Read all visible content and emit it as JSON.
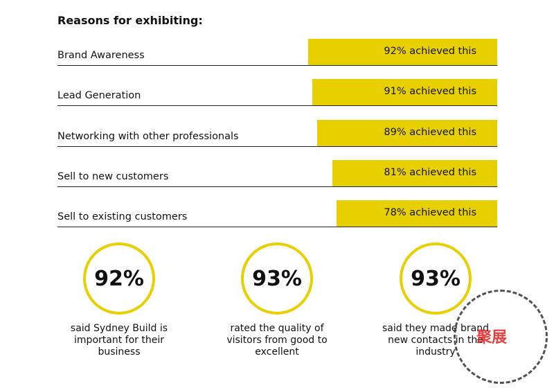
{
  "title": "Reasons for exhibiting:",
  "reasons": [
    {
      "label": "Brand Awareness",
      "value": 92,
      "text": "92% achieved this"
    },
    {
      "label": "Lead Generation",
      "value": 91,
      "text": "91% achieved this"
    },
    {
      "label": "Networking with other professionals",
      "value": 89,
      "text": "89% achieved this"
    },
    {
      "label": "Sell to new customers",
      "value": 81,
      "text": "81% achieved this"
    },
    {
      "label": "Sell to existing customers",
      "value": 78,
      "text": "78% achieved this"
    }
  ],
  "stats": [
    {
      "value": "92%",
      "desc": "said Sydney Build is important for their business"
    },
    {
      "value": "93%",
      "desc": "rated the quality of visitors from good to excellent"
    },
    {
      "value": "93%",
      "desc": "said they made brand new contacts in the industry"
    }
  ],
  "watermark": {
    "logo_text": "聚展"
  },
  "colors": {
    "accent": "#E8CF00"
  }
}
